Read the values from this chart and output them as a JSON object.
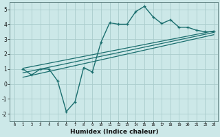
{
  "xlabel": "Humidex (Indice chaleur)",
  "ylabel": "",
  "xlim": [
    -0.5,
    23.5
  ],
  "ylim": [
    -2.5,
    5.5
  ],
  "xticks": [
    0,
    1,
    2,
    3,
    4,
    5,
    6,
    7,
    8,
    9,
    10,
    11,
    12,
    13,
    14,
    15,
    16,
    17,
    18,
    19,
    20,
    21,
    22,
    23
  ],
  "yticks": [
    -2,
    -1,
    0,
    1,
    2,
    3,
    4,
    5
  ],
  "bg_color": "#cce8e8",
  "grid_color": "#aacccc",
  "line_color": "#1a6e6e",
  "jagged_x": [
    1,
    2,
    3,
    4,
    5,
    6,
    7,
    8,
    9,
    10,
    11,
    12,
    13,
    14,
    15,
    16,
    17,
    18,
    19,
    20,
    21,
    22,
    23
  ],
  "jagged_y": [
    1.0,
    0.6,
    1.0,
    1.0,
    0.2,
    -1.85,
    -1.2,
    1.1,
    0.8,
    2.8,
    4.1,
    4.0,
    4.0,
    4.85,
    5.2,
    4.5,
    4.05,
    4.3,
    3.8,
    3.8,
    3.6,
    3.5,
    3.5
  ],
  "line1_x": [
    1,
    23
  ],
  "line1_y": [
    1.05,
    3.55
  ],
  "line2_x": [
    1,
    23
  ],
  "line2_y": [
    0.75,
    3.45
  ],
  "line3_x": [
    1,
    23
  ],
  "line3_y": [
    0.45,
    3.3
  ]
}
